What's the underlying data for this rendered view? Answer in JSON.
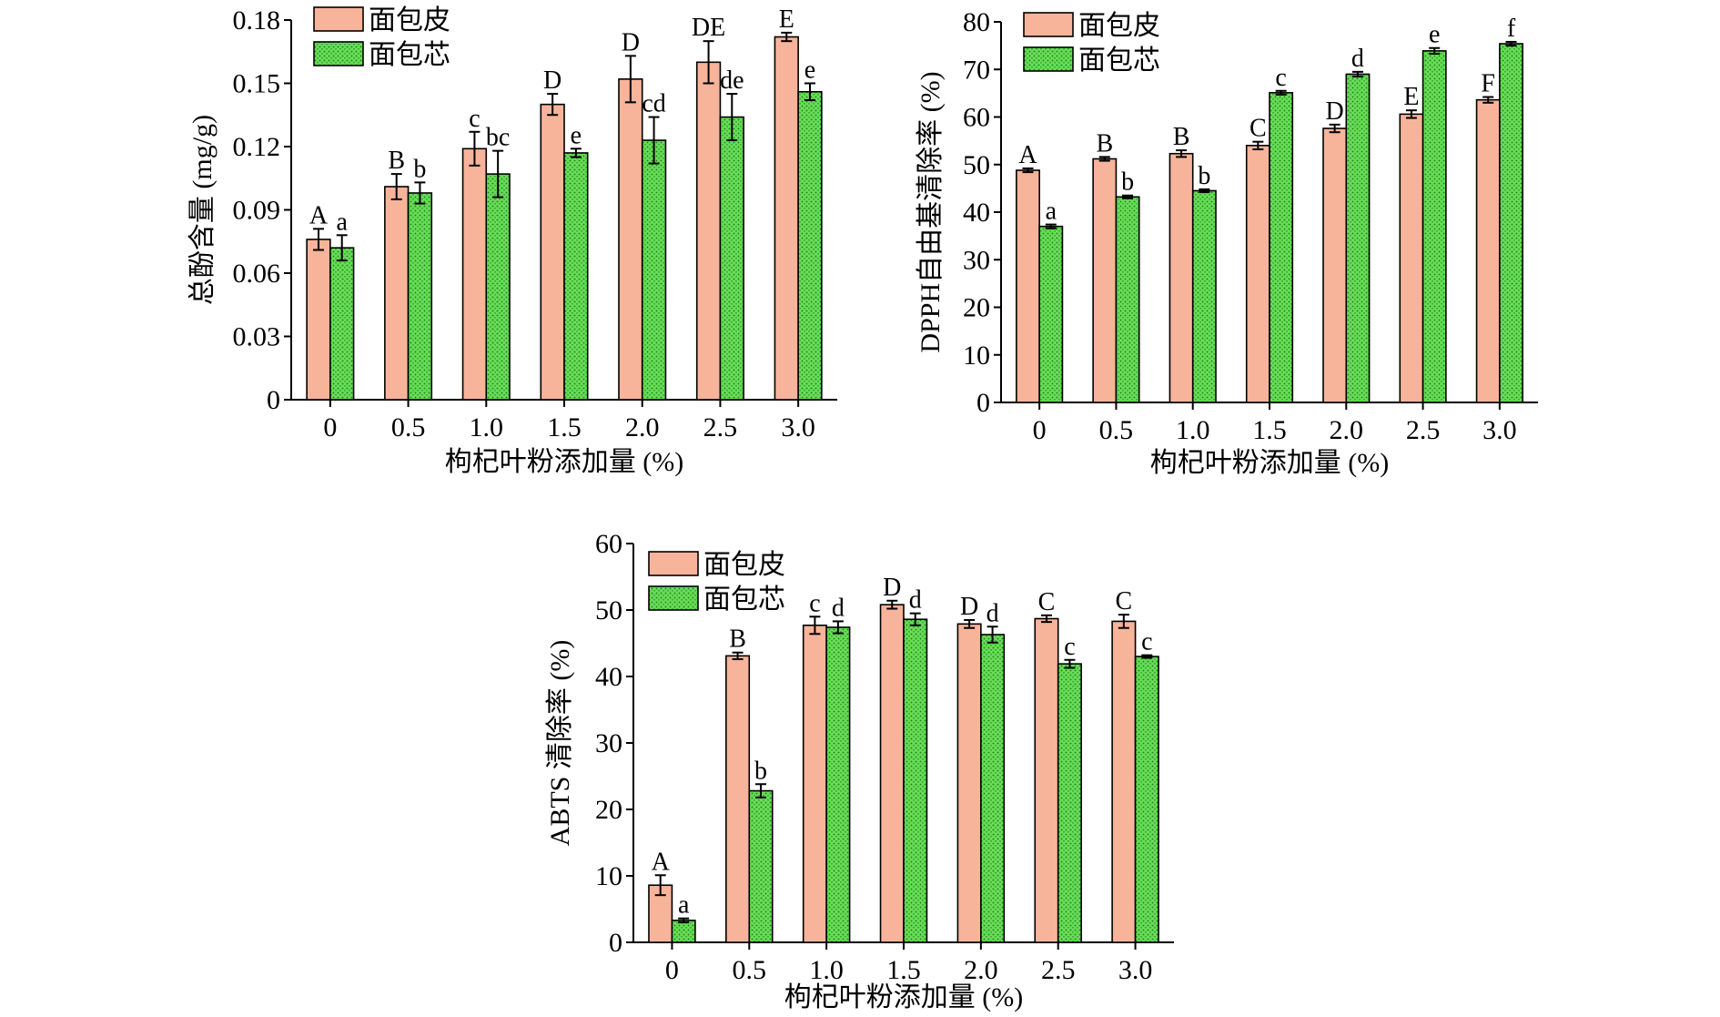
{
  "colors": {
    "crust": "#f7b49a",
    "crumb": "#66dd55",
    "stroke": "#000000"
  },
  "chart_data": [
    {
      "type": "bar",
      "categories": [
        "0",
        "0.5",
        "1.0",
        "1.5",
        "2.0",
        "2.5",
        "3.0"
      ],
      "xlabel": "枸杞叶粉添加量 (%)",
      "ylabel": "总酚含量 (mg/g)",
      "ylim": [
        0,
        0.18
      ],
      "yticks": [
        "0",
        "0.03",
        "0.06",
        "0.09",
        "0.12",
        "0.15",
        "0.18"
      ],
      "legend": [
        "面包皮",
        "面包芯"
      ],
      "series": [
        {
          "name": "面包皮",
          "values": [
            0.076,
            0.101,
            0.119,
            0.14,
            0.152,
            0.16,
            0.172
          ],
          "errors": [
            0.005,
            0.006,
            0.008,
            0.005,
            0.011,
            0.01,
            0.002
          ],
          "labels": [
            "A",
            "B",
            "c",
            "D",
            "D",
            "DE",
            "E"
          ]
        },
        {
          "name": "面包芯",
          "values": [
            0.072,
            0.098,
            0.107,
            0.117,
            0.123,
            0.134,
            0.146
          ],
          "errors": [
            0.006,
            0.005,
            0.011,
            0.002,
            0.011,
            0.011,
            0.004
          ],
          "labels": [
            "a",
            "b",
            "bc",
            "e",
            "cd",
            "de",
            "e"
          ]
        }
      ]
    },
    {
      "type": "bar",
      "categories": [
        "0",
        "0.5",
        "1.0",
        "1.5",
        "2.0",
        "2.5",
        "3.0"
      ],
      "xlabel": "枸杞叶粉添加量 (%)",
      "ylabel": "DPPH自由基清除率 (%)",
      "ylim": [
        0,
        80
      ],
      "yticks": [
        "0",
        "10",
        "20",
        "30",
        "40",
        "50",
        "60",
        "70",
        "80"
      ],
      "legend": [
        "面包皮",
        "面包芯"
      ],
      "series": [
        {
          "name": "面包皮",
          "values": [
            48.8,
            51.2,
            52.3,
            54.0,
            57.6,
            60.6,
            63.6
          ],
          "errors": [
            0.4,
            0.4,
            0.7,
            0.8,
            0.8,
            0.8,
            0.6
          ],
          "labels": [
            "A",
            "B",
            "B",
            "C",
            "D",
            "E",
            "F"
          ]
        },
        {
          "name": "面包芯",
          "values": [
            37.0,
            43.2,
            44.5,
            65.1,
            69.0,
            73.9,
            75.4
          ],
          "errors": [
            0.4,
            0.3,
            0.3,
            0.4,
            0.5,
            0.6,
            0.4
          ],
          "labels": [
            "a",
            "b",
            "b",
            "c",
            "d",
            "e",
            "f"
          ]
        }
      ]
    },
    {
      "type": "bar",
      "categories": [
        "0",
        "0.5",
        "1.0",
        "1.5",
        "2.0",
        "2.5",
        "3.0"
      ],
      "xlabel": "枸杞叶粉添加量 (%)",
      "ylabel": "ABTS 清除率 (%)",
      "ylim": [
        0,
        60
      ],
      "yticks": [
        "0",
        "10",
        "20",
        "30",
        "40",
        "50",
        "60"
      ],
      "legend": [
        "面包皮",
        "面包芯"
      ],
      "series": [
        {
          "name": "面包皮",
          "values": [
            8.6,
            43.1,
            47.7,
            50.8,
            47.9,
            48.7,
            48.3
          ],
          "errors": [
            1.5,
            0.5,
            1.3,
            0.6,
            0.6,
            0.5,
            1.0
          ],
          "labels": [
            "A",
            "B",
            "c",
            "D",
            "D",
            "C",
            "C"
          ]
        },
        {
          "name": "面包芯",
          "values": [
            3.3,
            22.8,
            47.4,
            48.6,
            46.3,
            41.9,
            43.0
          ],
          "errors": [
            0.3,
            1.0,
            0.9,
            0.9,
            1.2,
            0.6,
            0.2
          ],
          "labels": [
            "a",
            "b",
            "d",
            "d",
            "d",
            "c",
            "c"
          ]
        }
      ]
    }
  ]
}
